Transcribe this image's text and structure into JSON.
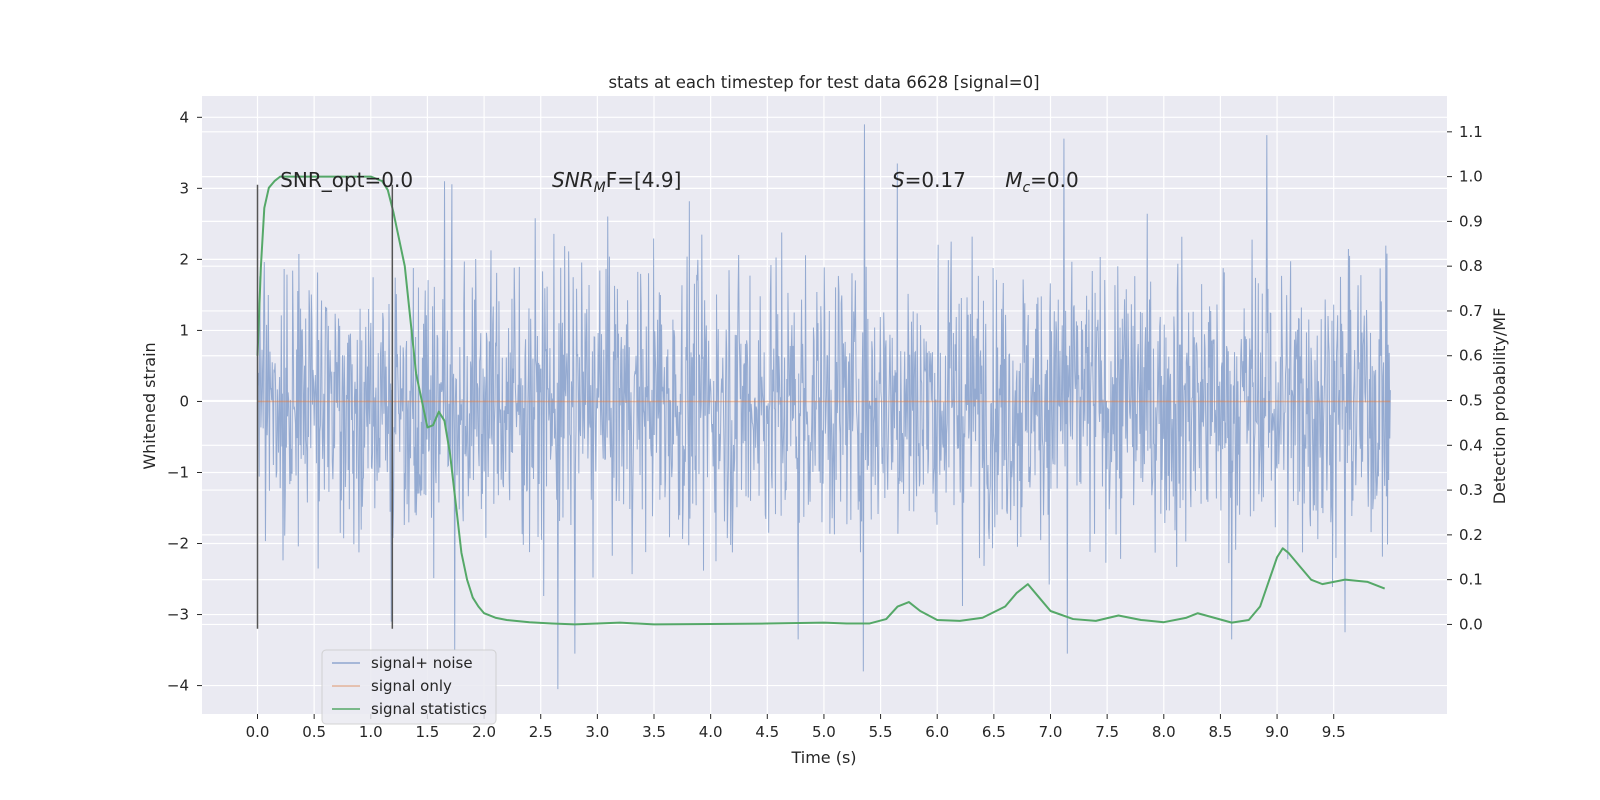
{
  "chart_data": {
    "type": "line",
    "title": "stats at each timestep for test data 6628 [signal=0]",
    "xlabel": "Time (s)",
    "ylabel_left": "Whitened strain",
    "ylabel_right": "Detection probability/MF",
    "xlim": [
      -0.49,
      10.5
    ],
    "ylim_left": [
      -4.4,
      4.3
    ],
    "ylim_right": [
      -0.2,
      1.18
    ],
    "xticks": [
      "0.0",
      "0.5",
      "1.0",
      "1.5",
      "2.0",
      "2.5",
      "3.0",
      "3.5",
      "4.0",
      "4.5",
      "5.0",
      "5.5",
      "6.0",
      "6.5",
      "7.0",
      "7.5",
      "8.0",
      "8.5",
      "9.0",
      "9.5"
    ],
    "xtick_values": [
      0.0,
      0.5,
      1.0,
      1.5,
      2.0,
      2.5,
      3.0,
      3.5,
      4.0,
      4.5,
      5.0,
      5.5,
      6.0,
      6.5,
      7.0,
      7.5,
      8.0,
      8.5,
      9.0,
      9.5
    ],
    "yticks_left": [
      "−4",
      "−3",
      "−2",
      "−1",
      "0",
      "1",
      "2",
      "3",
      "4"
    ],
    "ytick_values_left": [
      -4,
      -3,
      -2,
      -1,
      0,
      1,
      2,
      3,
      4
    ],
    "yticks_right": [
      "0.0",
      "0.1",
      "0.2",
      "0.3",
      "0.4",
      "0.5",
      "0.6",
      "0.7",
      "0.8",
      "0.9",
      "1.0",
      "1.1"
    ],
    "ytick_values_right": [
      0.0,
      0.1,
      0.2,
      0.3,
      0.4,
      0.5,
      0.6,
      0.7,
      0.8,
      0.9,
      1.0,
      1.1
    ],
    "grid": true,
    "legend_position": "bottom-left",
    "annotations": [
      {
        "pre": "SNR_opt=0.0",
        "italic": "",
        "sub": "",
        "post": "",
        "x": 0.2,
        "y": 3.02
      },
      {
        "pre": "",
        "italic": "SNR",
        "sub": "M",
        "post": "F=[4.9]",
        "x": 2.6,
        "y": 3.02
      },
      {
        "pre": "",
        "italic": "S",
        "sub": "",
        "post": "=0.17",
        "x": 5.6,
        "y": 3.02
      },
      {
        "pre": "",
        "italic": "M",
        "sub": "c",
        "post": "=0.0",
        "x": 6.6,
        "y": 3.02
      }
    ],
    "vertical_lines": [
      {
        "x": 0.0,
        "y0": -3.2,
        "y1": 3.05
      },
      {
        "x": 1.19,
        "y0": -3.2,
        "y1": 3.05
      }
    ],
    "series": [
      {
        "name": "signal+ noise",
        "color": "#8fa6cf",
        "duration": 10.0,
        "typical_amplitude": 1.3,
        "peaks": [
          {
            "x": 5.36,
            "y": 3.9
          },
          {
            "x": 8.91,
            "y": 3.75
          },
          {
            "x": 7.12,
            "y": 3.7
          },
          {
            "x": 5.65,
            "y": 3.35
          },
          {
            "x": 1.65,
            "y": 3.1
          },
          {
            "x": 2.65,
            "y": -4.05
          },
          {
            "x": 5.35,
            "y": -3.8
          },
          {
            "x": 7.15,
            "y": -3.55
          },
          {
            "x": 2.8,
            "y": -3.55
          },
          {
            "x": 1.74,
            "y": -3.5
          },
          {
            "x": 4.77,
            "y": -3.35
          },
          {
            "x": 8.6,
            "y": -3.35
          },
          {
            "x": 9.6,
            "y": -3.25
          },
          {
            "x": 1.18,
            "y": -3.1
          }
        ]
      },
      {
        "name": "signal only",
        "color": "#dd8452",
        "x": [
          0.0,
          10.0
        ],
        "y": [
          0.0,
          0.0
        ]
      },
      {
        "name": "signal statistics",
        "color": "#55a868",
        "axis": "right",
        "x": [
          0.0,
          0.03,
          0.06,
          0.1,
          0.15,
          0.2,
          0.3,
          0.5,
          0.8,
          1.0,
          1.1,
          1.15,
          1.2,
          1.3,
          1.35,
          1.4,
          1.45,
          1.5,
          1.55,
          1.6,
          1.65,
          1.7,
          1.75,
          1.8,
          1.85,
          1.9,
          1.95,
          2.0,
          2.1,
          2.2,
          2.4,
          2.6,
          2.8,
          3.0,
          3.2,
          3.5,
          4.0,
          4.5,
          5.0,
          5.2,
          5.4,
          5.55,
          5.65,
          5.75,
          5.85,
          6.0,
          6.2,
          6.4,
          6.6,
          6.7,
          6.8,
          6.9,
          7.0,
          7.2,
          7.4,
          7.6,
          7.8,
          8.0,
          8.2,
          8.3,
          8.4,
          8.6,
          8.75,
          8.85,
          9.0,
          9.05,
          9.1,
          9.2,
          9.3,
          9.4,
          9.5,
          9.6,
          9.8,
          9.95
        ],
        "y": [
          0.6,
          0.8,
          0.93,
          0.975,
          0.99,
          1.0,
          1.0,
          1.0,
          1.0,
          1.0,
          0.99,
          0.97,
          0.92,
          0.8,
          0.68,
          0.56,
          0.5,
          0.44,
          0.445,
          0.475,
          0.455,
          0.38,
          0.27,
          0.16,
          0.1,
          0.06,
          0.04,
          0.025,
          0.015,
          0.01,
          0.005,
          0.002,
          0.0,
          0.002,
          0.004,
          0.0,
          0.001,
          0.002,
          0.004,
          0.002,
          0.002,
          0.012,
          0.04,
          0.05,
          0.03,
          0.01,
          0.008,
          0.015,
          0.04,
          0.07,
          0.09,
          0.06,
          0.03,
          0.012,
          0.008,
          0.02,
          0.01,
          0.005,
          0.015,
          0.025,
          0.018,
          0.004,
          0.01,
          0.04,
          0.15,
          0.17,
          0.16,
          0.13,
          0.1,
          0.09,
          0.095,
          0.1,
          0.095,
          0.08
        ]
      }
    ]
  }
}
